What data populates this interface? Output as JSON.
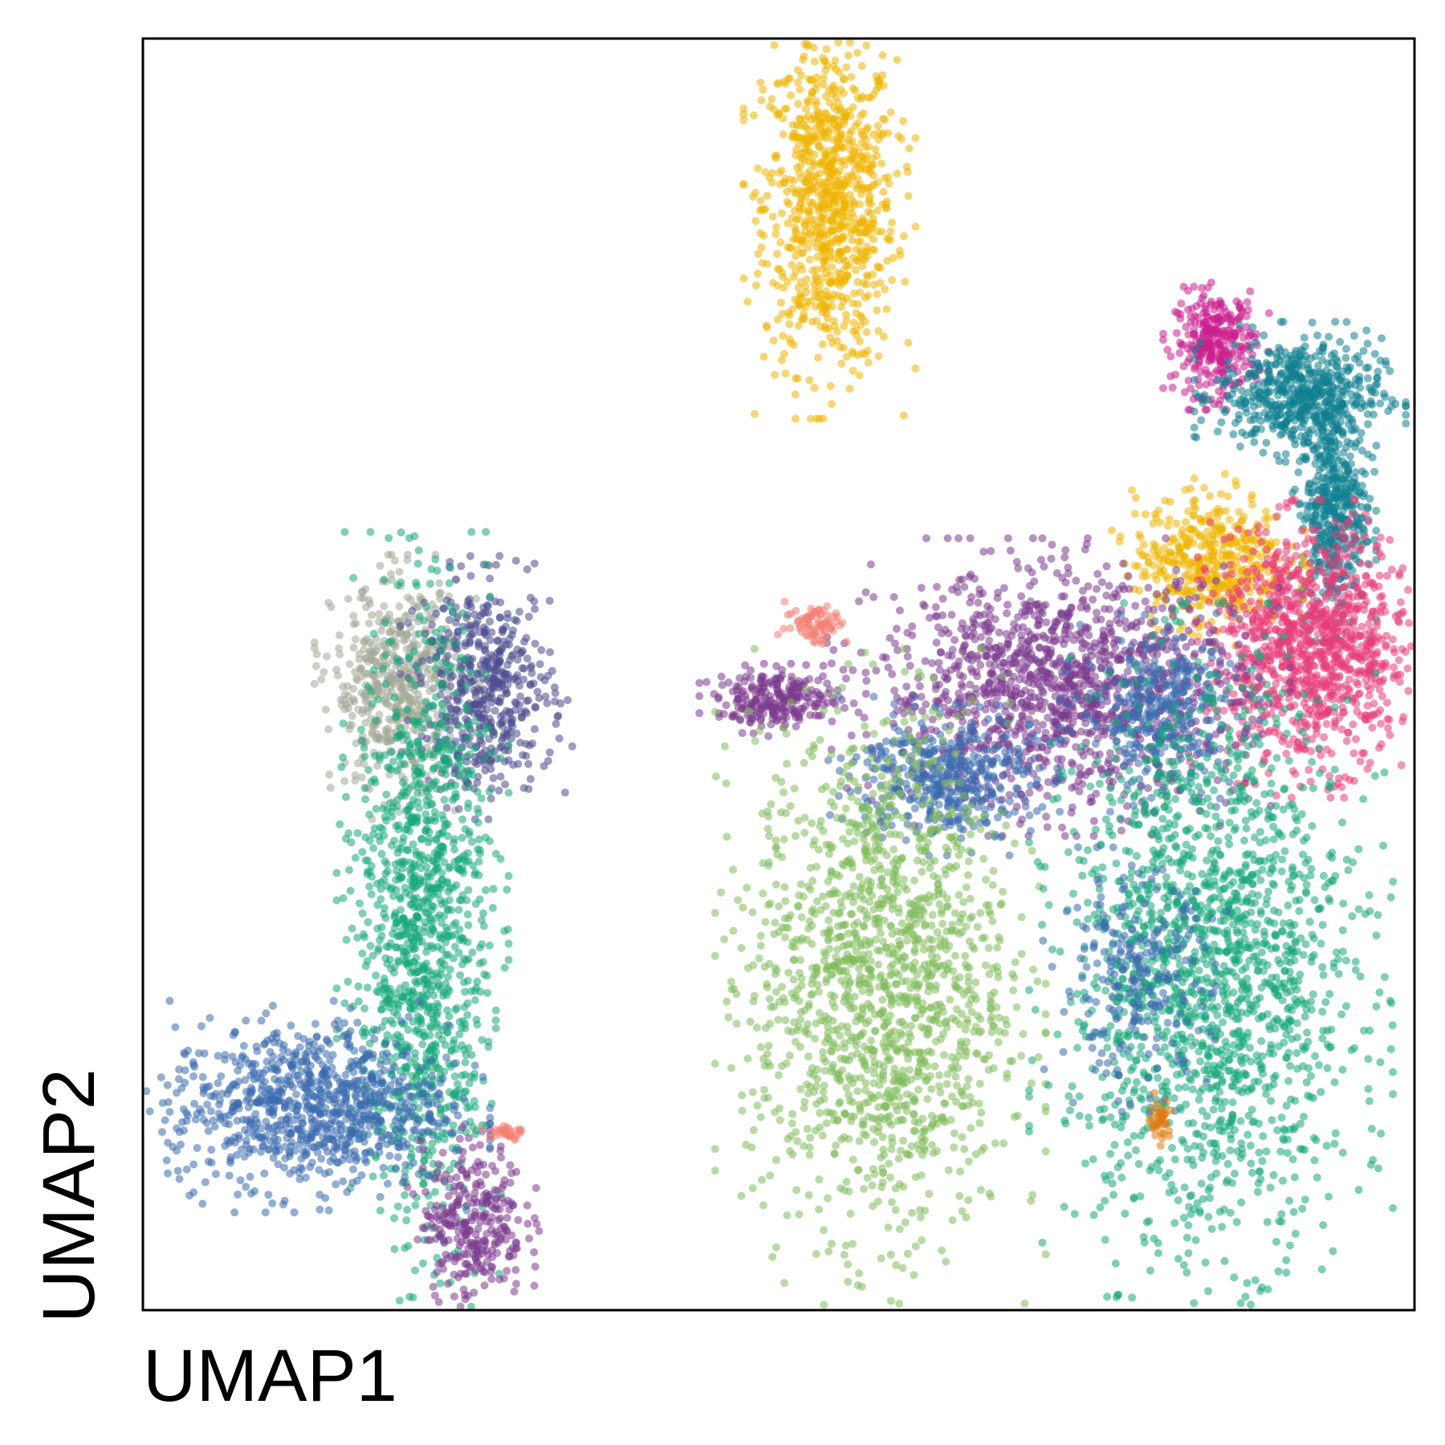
{
  "chart_data": {
    "type": "scatter",
    "title": "",
    "xlabel": "UMAP1",
    "ylabel": "UMAP2",
    "xlim": [
      0,
      100
    ],
    "ylim": [
      0,
      100
    ],
    "grid": false,
    "ticks": false,
    "legend": "none",
    "colors": {
      "yellow": "#EFB400",
      "magenta": "#CC1F8E",
      "teal": "#0F8090",
      "pink": "#E83C78",
      "purple": "#7B3A8E",
      "blue": "#3A6BAE",
      "green": "#14A878",
      "light_green": "#7FBC5A",
      "grey": "#A3A898",
      "navy": "#4B4A8E",
      "salmon": "#F47F72",
      "orange": "#E07A10"
    },
    "clusters": [
      {
        "color": "yellow",
        "center": [
          54,
          87
        ],
        "spread": [
          2.6,
          6.5
        ],
        "n": 900
      },
      {
        "color": "magenta",
        "center": [
          84.4,
          76
        ],
        "spread": [
          1.6,
          2.0
        ],
        "n": 300
      },
      {
        "color": "teal",
        "center": [
          91,
          72
        ],
        "spread": [
          3.2,
          2.2
        ],
        "n": 550
      },
      {
        "color": "teal",
        "center": [
          93.6,
          63
        ],
        "spread": [
          1.3,
          4.0
        ],
        "n": 450
      },
      {
        "color": "yellow",
        "center": [
          84,
          59
        ],
        "spread": [
          3.0,
          2.6
        ],
        "n": 450
      },
      {
        "color": "pink",
        "center": [
          92,
          52
        ],
        "spread": [
          4.0,
          4.5
        ],
        "n": 1100
      },
      {
        "color": "purple",
        "center": [
          72,
          49
        ],
        "spread": [
          7.0,
          4.5
        ],
        "n": 1300
      },
      {
        "color": "purple",
        "center": [
          50,
          48
        ],
        "spread": [
          2.4,
          1.1
        ],
        "n": 250
      },
      {
        "color": "blue",
        "center": [
          63,
          42
        ],
        "spread": [
          3.5,
          2.4
        ],
        "n": 450
      },
      {
        "color": "blue",
        "center": [
          80,
          47
        ],
        "spread": [
          3.0,
          3.0
        ],
        "n": 350
      },
      {
        "color": "light_green",
        "center": [
          58,
          26
        ],
        "spread": [
          5.0,
          10.0
        ],
        "n": 1500
      },
      {
        "color": "green",
        "center": [
          84,
          27
        ],
        "spread": [
          5.5,
          11.0
        ],
        "n": 1700
      },
      {
        "color": "blue",
        "center": [
          78,
          26
        ],
        "spread": [
          3.0,
          4.0
        ],
        "n": 250
      },
      {
        "color": "salmon",
        "center": [
          53,
          54
        ],
        "spread": [
          1.2,
          0.8
        ],
        "n": 80
      },
      {
        "color": "orange",
        "center": [
          80,
          15
        ],
        "spread": [
          0.4,
          0.8
        ],
        "n": 40
      },
      {
        "color": "grey",
        "center": [
          20,
          49
        ],
        "spread": [
          2.5,
          4.0
        ],
        "n": 500
      },
      {
        "color": "navy",
        "center": [
          27,
          49
        ],
        "spread": [
          2.6,
          4.0
        ],
        "n": 500
      },
      {
        "color": "green",
        "center": [
          22,
          30
        ],
        "spread": [
          2.6,
          12.0
        ],
        "n": 1200
      },
      {
        "color": "blue",
        "center": [
          13,
          16
        ],
        "spread": [
          5.5,
          3.2
        ],
        "n": 900
      },
      {
        "color": "purple",
        "center": [
          26,
          7
        ],
        "spread": [
          2.0,
          3.0
        ],
        "n": 300
      },
      {
        "color": "salmon",
        "center": [
          28.5,
          14
        ],
        "spread": [
          0.8,
          0.4
        ],
        "n": 30
      }
    ]
  }
}
